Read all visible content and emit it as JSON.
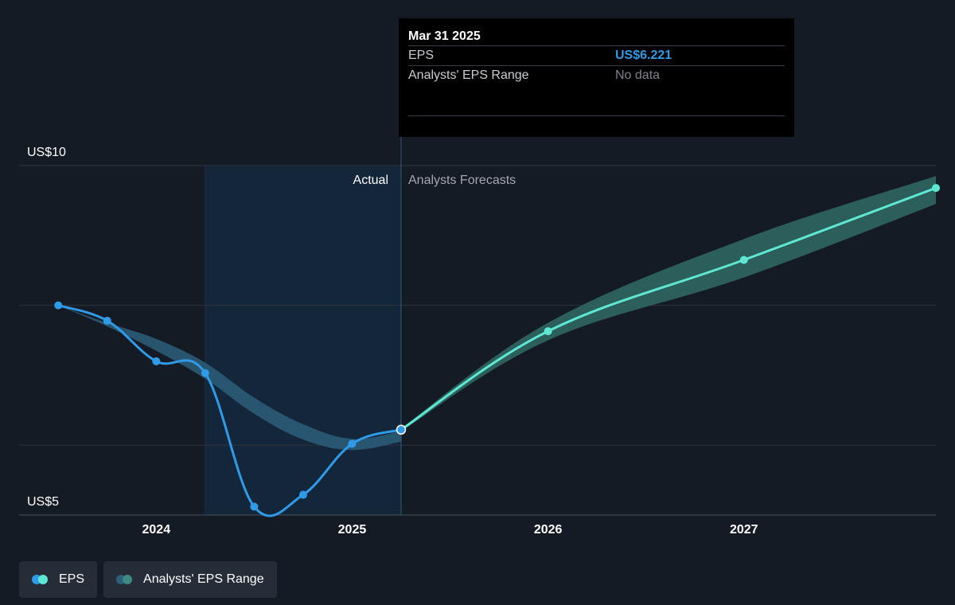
{
  "tooltip": {
    "date": "Mar 31 2025",
    "eps_label": "EPS",
    "eps_value": "US$6.221",
    "range_label": "Analysts' EPS Range",
    "range_value": "No data"
  },
  "labels": {
    "actual": "Actual",
    "forecast": "Analysts Forecasts"
  },
  "legend": [
    {
      "label": "EPS",
      "colors": [
        "#2f9be8",
        "#5ee8d4"
      ]
    },
    {
      "label": "Analysts' EPS Range",
      "colors": [
        "#2c5f7a",
        "#3c8a84"
      ]
    }
  ],
  "colors": {
    "background": "#151b24",
    "actual": "#2f9be8",
    "forecast": "#5ee8d4",
    "actual_range": "#2c5f7a",
    "forecast_range": "#2f6663",
    "highlight": "#14263a"
  },
  "chart_data": {
    "type": "line",
    "ylim": [
      5,
      10
    ],
    "y_tick_labels": [
      {
        "value": 10,
        "label": "US$10"
      },
      {
        "value": 5,
        "label": "US$5"
      }
    ],
    "gridlines": [
      10,
      8,
      6,
      5
    ],
    "x_ticks": [
      {
        "value": 2024.0,
        "label": "2024"
      },
      {
        "value": 2025.0,
        "label": "2025"
      },
      {
        "value": 2026.0,
        "label": "2026"
      },
      {
        "value": 2027.0,
        "label": "2027"
      }
    ],
    "xlim": [
      2023.3,
      2027.98
    ],
    "shaded_start": 2024.25,
    "divider": 2025.25,
    "series": [
      {
        "name": "EPS",
        "kind": "actual",
        "points": [
          [
            2023.5,
            8.0
          ],
          [
            2023.75,
            7.78
          ],
          [
            2024.0,
            7.2
          ],
          [
            2024.25,
            7.03
          ],
          [
            2024.5,
            5.12
          ],
          [
            2024.75,
            5.29
          ],
          [
            2025.0,
            6.02
          ],
          [
            2025.25,
            6.221
          ]
        ]
      },
      {
        "name": "EPS",
        "kind": "forecast",
        "points": [
          [
            2025.25,
            6.221
          ],
          [
            2026.0,
            7.63
          ],
          [
            2027.0,
            8.65
          ],
          [
            2027.98,
            9.68
          ]
        ]
      }
    ],
    "range": [
      {
        "kind": "actual",
        "x": [
          2023.5,
          2023.75,
          2024.0,
          2024.25,
          2024.5,
          2024.75,
          2025.0,
          2025.25
        ],
        "low": [
          8.0,
          7.7,
          7.35,
          6.95,
          6.45,
          6.08,
          5.93,
          6.05
        ],
        "high": [
          8.0,
          7.75,
          7.52,
          7.18,
          6.68,
          6.3,
          6.09,
          6.2
        ]
      },
      {
        "kind": "forecast",
        "x": [
          2025.25,
          2026.0,
          2027.0,
          2027.98
        ],
        "low": [
          6.2,
          7.5,
          8.4,
          9.45
        ],
        "high": [
          6.24,
          7.75,
          8.95,
          9.85
        ]
      }
    ]
  }
}
